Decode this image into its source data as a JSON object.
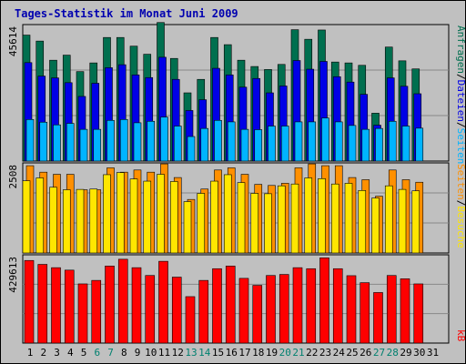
{
  "title": "Tages-Statistik im Monat Juni 2009",
  "colors": {
    "anfragen": "#006f4f",
    "dateien": "#0000e6",
    "seiten": "#00b4ff",
    "besuche": "#ffe600",
    "seiten2": "#ff9000",
    "kb": "#ff0000",
    "weekend": "#00806f",
    "text": "#000000"
  },
  "right_labels": {
    "top": {
      "anfragen": "Anfragen",
      "sep1": "/",
      "dateien": "Dateien",
      "sep2": "/",
      "seiten": "Seiten"
    },
    "mid": {
      "besuche": "Besuche",
      "sep": "/",
      "seiten": "Seiten"
    },
    "bot": {
      "kb": "kB"
    }
  },
  "chart_data": [
    {
      "type": "bar",
      "panel": "top",
      "ymax_label": "45614",
      "ylim": [
        0,
        45614
      ],
      "categories": [
        "1",
        "2",
        "3",
        "4",
        "5",
        "6",
        "7",
        "8",
        "9",
        "10",
        "11",
        "12",
        "13",
        "14",
        "15",
        "16",
        "17",
        "18",
        "19",
        "20",
        "21",
        "22",
        "23",
        "24",
        "25",
        "26",
        "27",
        "28",
        "29",
        "30",
        "31"
      ],
      "weekend_days": [
        "6",
        "7",
        "13",
        "14",
        "20",
        "21",
        "27",
        "28"
      ],
      "series": [
        {
          "name": "Anfragen",
          "values": [
            42100,
            40100,
            33700,
            35400,
            29900,
            32800,
            41300,
            41300,
            38400,
            35700,
            46300,
            34300,
            22800,
            27300,
            41300,
            38900,
            33700,
            31600,
            30600,
            32300,
            43900,
            40700,
            43800,
            33100,
            32800,
            32000,
            16000,
            38100,
            33500,
            30800,
            0
          ]
        },
        {
          "name": "Dateien",
          "values": [
            32900,
            28400,
            27800,
            26200,
            21600,
            26000,
            31200,
            32200,
            28800,
            27900,
            34700,
            27300,
            16900,
            20500,
            31000,
            28800,
            24700,
            27600,
            22800,
            25100,
            33600,
            30700,
            33300,
            28200,
            26400,
            22300,
            12000,
            27800,
            25000,
            22500,
            0
          ]
        },
        {
          "name": "Seiten",
          "values": [
            13900,
            13000,
            12100,
            12600,
            10600,
            10600,
            13600,
            13900,
            12800,
            13300,
            14700,
            11700,
            8200,
            10900,
            13600,
            13100,
            10600,
            10500,
            11700,
            11700,
            13100,
            13100,
            14400,
            13100,
            11900,
            10600,
            10900,
            13300,
            11700,
            11000,
            0
          ]
        }
      ]
    },
    {
      "type": "bar",
      "panel": "middle",
      "ymax_label": "2508",
      "ylim": [
        0,
        2508
      ],
      "categories": [
        "1",
        "2",
        "3",
        "4",
        "5",
        "6",
        "7",
        "8",
        "9",
        "10",
        "11",
        "12",
        "13",
        "14",
        "15",
        "16",
        "17",
        "18",
        "19",
        "20",
        "21",
        "22",
        "23",
        "24",
        "25",
        "26",
        "27",
        "28",
        "29",
        "30",
        "31"
      ],
      "series": [
        {
          "name": "Besuche",
          "values": [
            2010,
            2090,
            1830,
            1760,
            1770,
            1780,
            2180,
            2240,
            2060,
            2000,
            2190,
            1990,
            1430,
            1660,
            2000,
            2180,
            1960,
            1660,
            1650,
            1870,
            1920,
            2090,
            2070,
            1920,
            1940,
            1740,
            1530,
            1870,
            1770,
            1730,
            0
          ]
        },
        {
          "name": "Seiten",
          "values": [
            2430,
            2250,
            2190,
            2190,
            1760,
            1760,
            2370,
            2250,
            2310,
            2250,
            2480,
            2100,
            1490,
            1780,
            2310,
            2370,
            2190,
            1910,
            1880,
            1940,
            2370,
            2480,
            2430,
            2430,
            2100,
            2040,
            1580,
            2310,
            2040,
            1970,
            0
          ]
        }
      ]
    },
    {
      "type": "bar",
      "panel": "bottom",
      "ymax_label": "429613",
      "ylim": [
        0,
        429613
      ],
      "categories": [
        "1",
        "2",
        "3",
        "4",
        "5",
        "6",
        "7",
        "8",
        "9",
        "10",
        "11",
        "12",
        "13",
        "14",
        "15",
        "16",
        "17",
        "18",
        "19",
        "20",
        "21",
        "22",
        "23",
        "24",
        "25",
        "26",
        "27",
        "28",
        "29",
        "30",
        "31"
      ],
      "series": [
        {
          "name": "kB",
          "values": [
            402000,
            383000,
            367000,
            355000,
            288000,
            305000,
            375000,
            408000,
            367000,
            329000,
            398000,
            321000,
            226000,
            305000,
            362000,
            375000,
            315000,
            281000,
            329000,
            334000,
            367000,
            362000,
            415000,
            362000,
            328000,
            294000,
            246000,
            329000,
            313000,
            288000,
            0
          ]
        }
      ]
    }
  ]
}
